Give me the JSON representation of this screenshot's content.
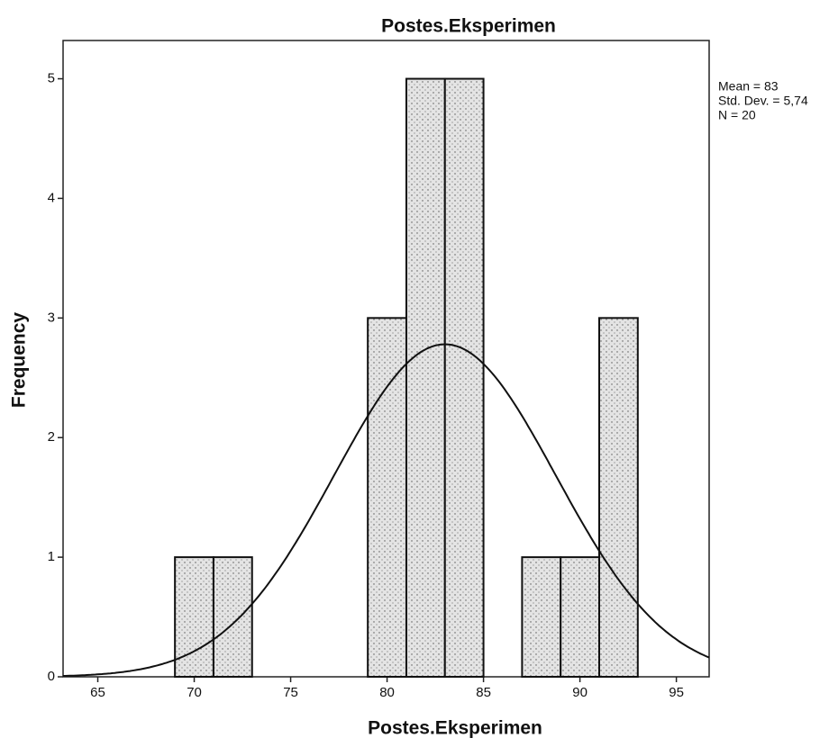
{
  "chart_data": {
    "type": "histogram",
    "title": "Postes.Eksperimen",
    "x_label": "Postes.Eksperimen",
    "y_label": "Frequency",
    "bins": [
      69,
      71,
      73,
      75,
      77,
      79,
      81,
      83,
      85,
      87,
      89,
      91,
      93
    ],
    "values": [
      1,
      1,
      0,
      0,
      0,
      3,
      5,
      5,
      0,
      1,
      1,
      3
    ],
    "color": "#cfcfcf",
    "xlim": [
      63.2,
      96.7
    ],
    "xticks": [
      65,
      70,
      75,
      80,
      85,
      90,
      95
    ],
    "ylim": [
      0,
      5.32
    ],
    "yticks": [
      0,
      1,
      2,
      3,
      4,
      5
    ],
    "stats": [
      {
        "value": 83,
        "label": "Mean = 83"
      },
      {
        "value": 5.74,
        "label": "Std. Dev. = 5,74"
      },
      {
        "value": 20,
        "label": "N = 20"
      }
    ],
    "normal_curve": true
  }
}
